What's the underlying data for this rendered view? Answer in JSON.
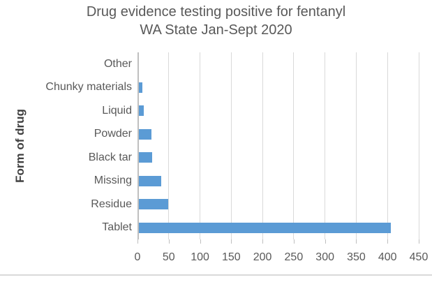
{
  "title": {
    "line1": "Drug evidence testing positive for fentanyl",
    "line2": "WA State Jan-Sept 2020"
  },
  "chart_data": {
    "type": "bar",
    "orientation": "horizontal",
    "title": "Drug evidence testing positive for fentanyl WA State Jan-Sept 2020",
    "ylabel": "Form of drug",
    "xlabel": "",
    "categories": [
      "Other",
      "Chunky materials",
      "Liquid",
      "Powder",
      "Black tar",
      "Missing",
      "Residue",
      "Tablet"
    ],
    "values": [
      0,
      6,
      8,
      20,
      21,
      36,
      47,
      403
    ],
    "xlim": [
      0,
      450
    ],
    "x_ticks": [
      0,
      50,
      100,
      150,
      200,
      250,
      300,
      350,
      400,
      450
    ],
    "grid": true,
    "legend": false
  },
  "colors": {
    "bar": "#5b9bd5",
    "gridline": "#d9d9d9",
    "axis_line": "#bfbfbf",
    "text": "#595959",
    "axis_title_text": "#404040",
    "divider": "#d9d9d9"
  }
}
